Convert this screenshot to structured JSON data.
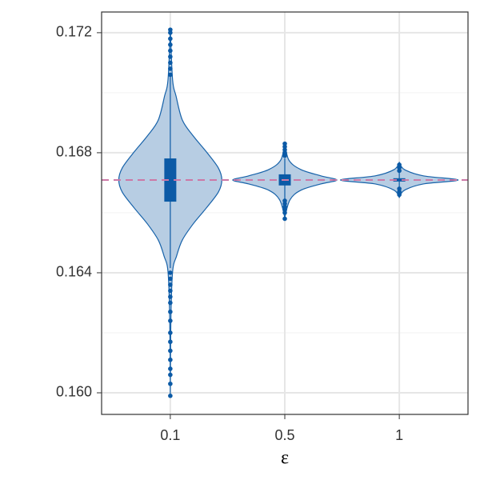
{
  "chart_data": {
    "type": "violin",
    "x_label": "ε",
    "categories": [
      "0.1",
      "0.5",
      "1"
    ],
    "ylim": [
      0.15928,
      0.17269
    ],
    "yticks": [
      {
        "value": 0.16,
        "label": "0.160"
      },
      {
        "value": 0.164,
        "label": "0.164"
      },
      {
        "value": 0.168,
        "label": "0.168"
      },
      {
        "value": 0.172,
        "label": "0.172"
      }
    ],
    "minor_yticks": [
      0.162,
      0.166,
      0.17
    ],
    "grid": true,
    "reference_line": 0.16709,
    "reference_color": "#cc79a7",
    "fill_color": "#b7cde3",
    "line_color": "#1762a9",
    "box_color": "#0b5aa6",
    "groups": [
      {
        "violin": {
          "y": [
            0.1721,
            0.17043,
            0.16989,
            0.16909,
            0.16856,
            0.16803,
            0.16749,
            0.16709,
            0.16669,
            0.16616,
            0.16563,
            0.16509,
            0.16456,
            0.16403,
            0.16243,
            0.1599
          ],
          "width": [
            0,
            0.04,
            0.1,
            0.21,
            0.4,
            0.63,
            0.84,
            0.9,
            0.84,
            0.63,
            0.4,
            0.21,
            0.11,
            0.04,
            0.01,
            0
          ]
        },
        "whisker_low": 0.16416,
        "q1": 0.16637,
        "median": 0.16709,
        "q3": 0.16781,
        "whisker_high": 0.17056,
        "outliers": [
          0.1706,
          0.1708,
          0.171,
          0.1712,
          0.1714,
          0.1716,
          0.1718,
          0.172,
          0.1721,
          0.164,
          0.1638,
          0.1636,
          0.1634,
          0.1632,
          0.163,
          0.1627,
          0.1624,
          0.162,
          0.1617,
          0.1614,
          0.1611,
          0.1608,
          0.1606,
          0.1603,
          0.1599
        ]
      },
      {
        "violin": {
          "y": [
            0.16835,
            0.16776,
            0.16744,
            0.16723,
            0.16709,
            0.16696,
            0.16675,
            0.16643,
            0.16584
          ],
          "width": [
            0,
            0.07,
            0.28,
            0.63,
            0.91,
            0.63,
            0.28,
            0.09,
            0
          ]
        },
        "whisker_low": 0.16643,
        "q1": 0.16691,
        "median": 0.1671,
        "q3": 0.16728,
        "whisker_high": 0.16781,
        "outliers": [
          0.1679,
          0.168,
          0.1681,
          0.1682,
          0.1683,
          0.1664,
          0.1663,
          0.1662,
          0.1661,
          0.166,
          0.1658
        ]
      },
      {
        "violin": {
          "y": [
            0.16768,
            0.16744,
            0.16723,
            0.16709,
            0.16696,
            0.16675,
            0.16651
          ],
          "width": [
            0,
            0.09,
            0.42,
            1.03,
            0.42,
            0.09,
            0
          ]
        },
        "whisker_low": 0.16685,
        "q1": 0.16704,
        "median": 0.1671,
        "q3": 0.16715,
        "whisker_high": 0.16733,
        "outliers": [
          0.1674,
          0.1675,
          0.1676,
          0.1668,
          0.1667,
          0.1666
        ]
      }
    ]
  }
}
